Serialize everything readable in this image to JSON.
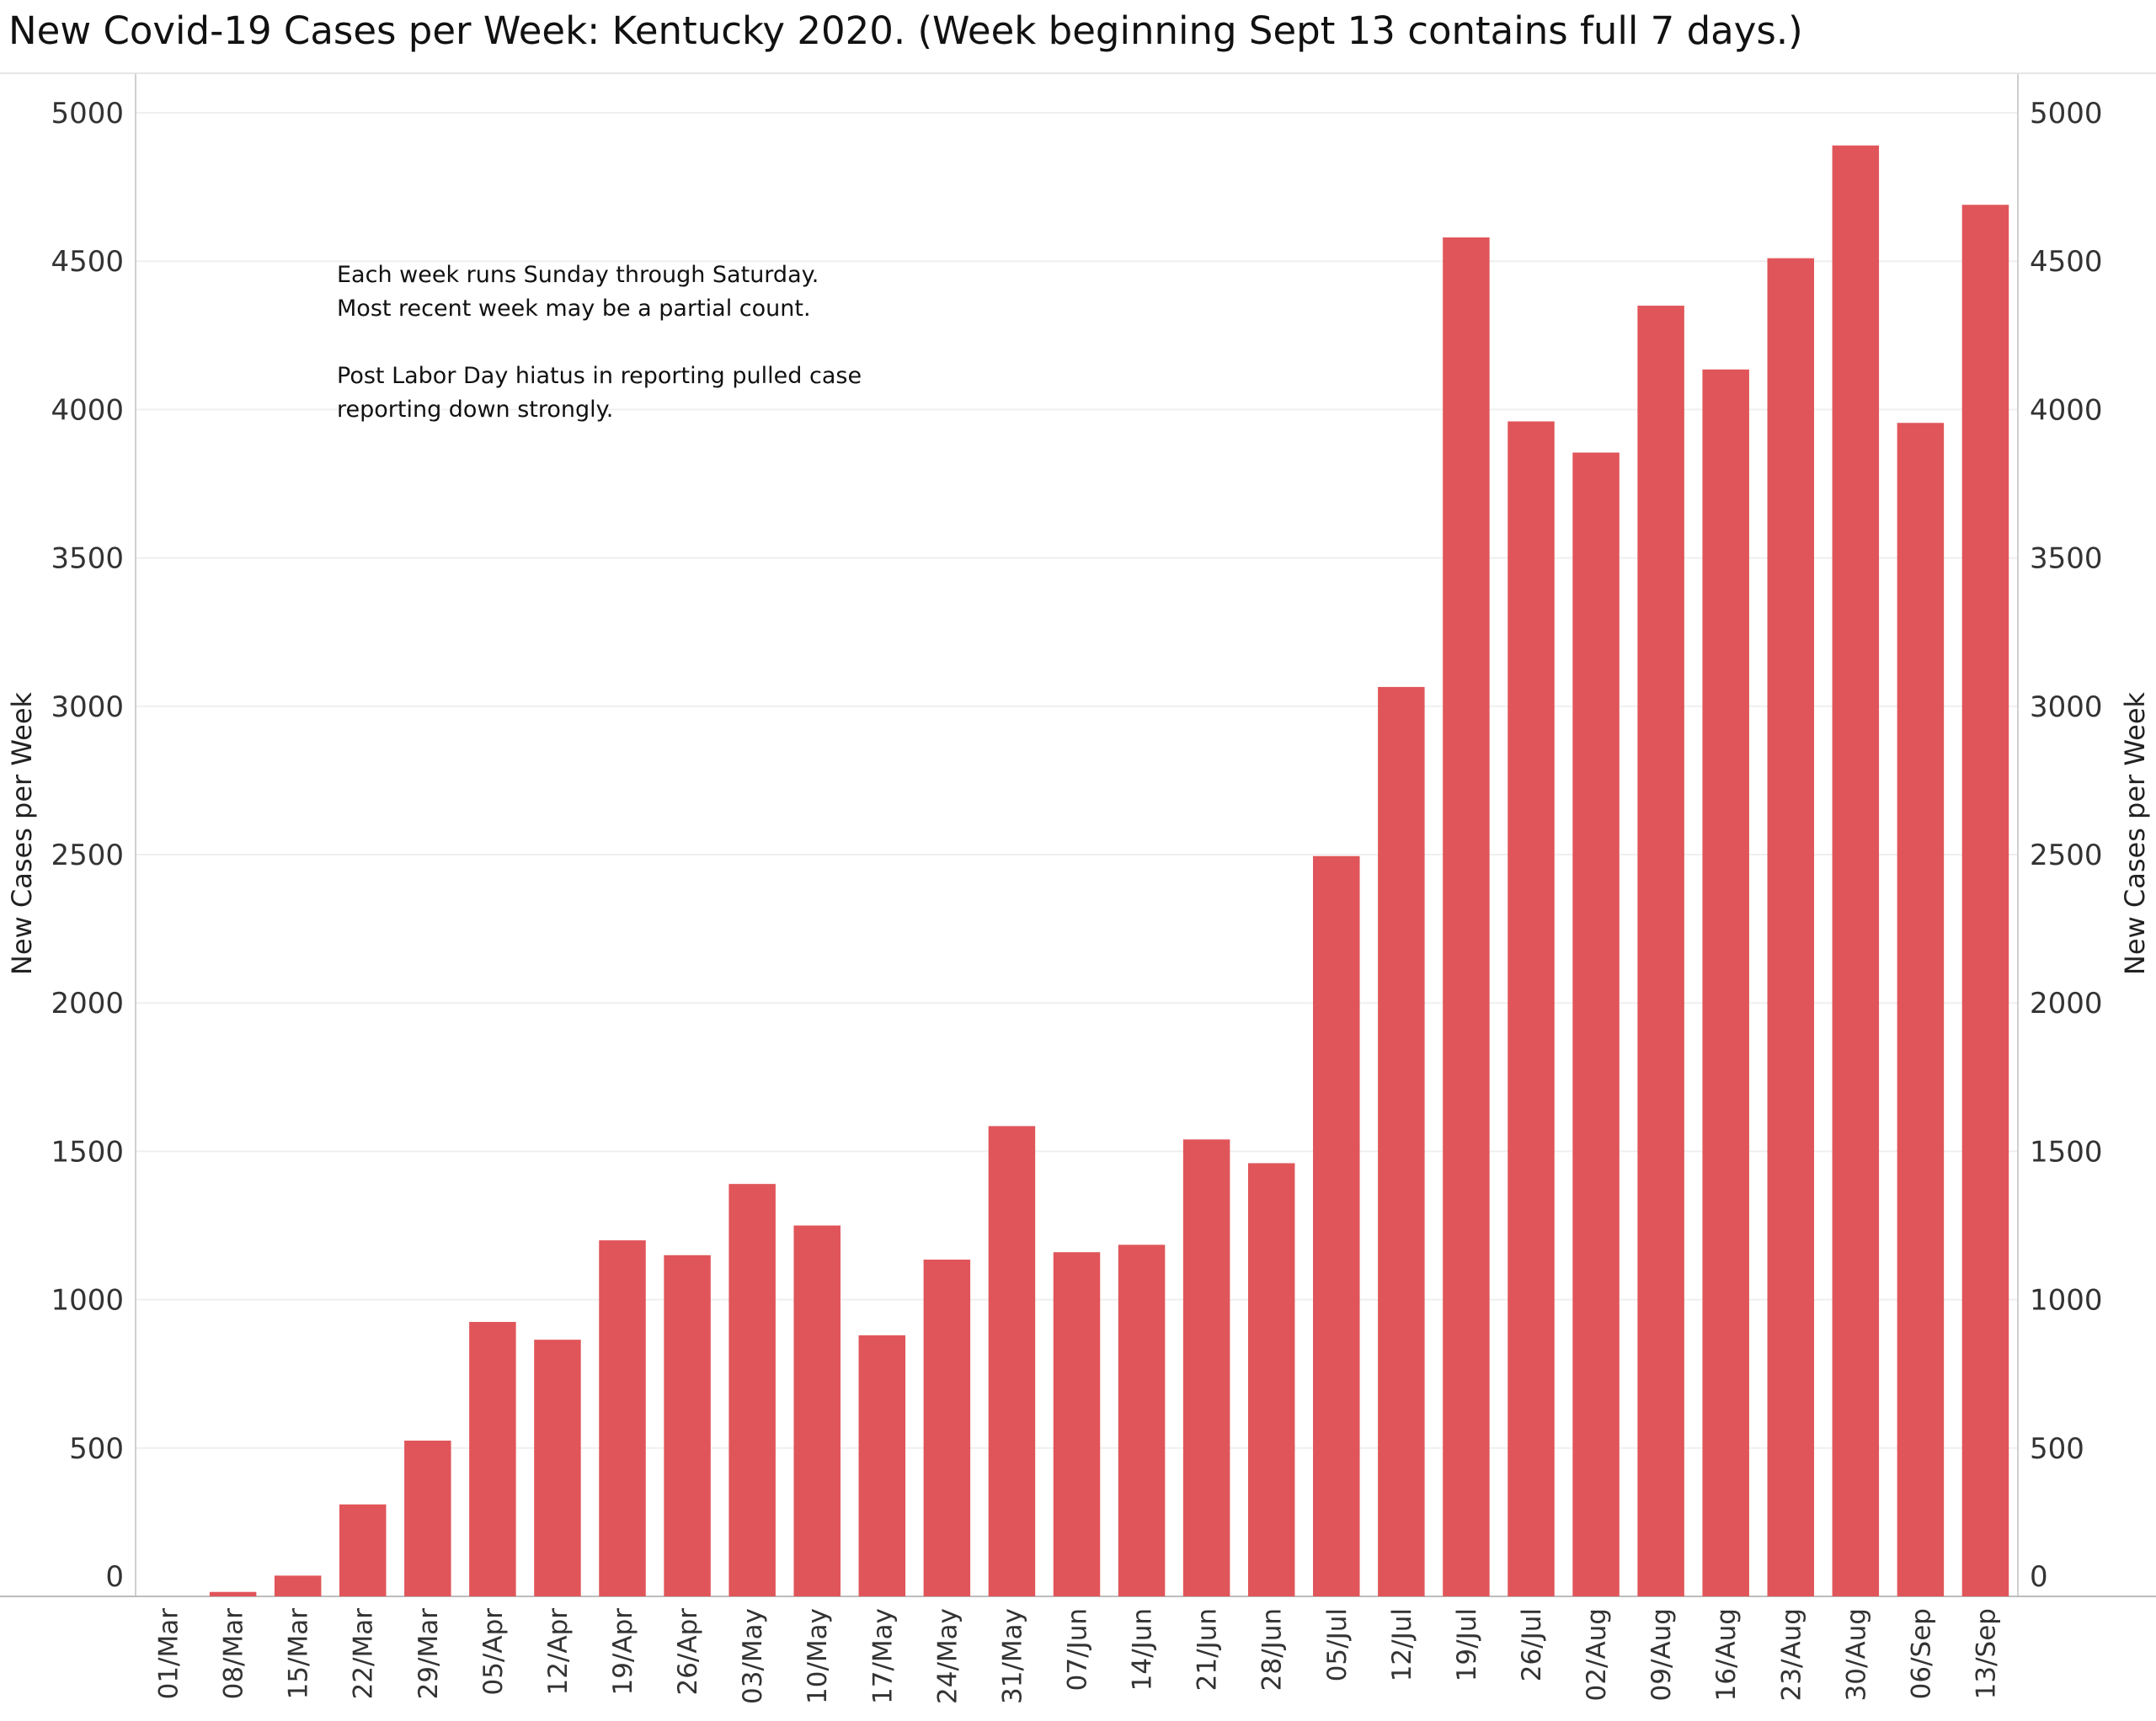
{
  "chart_data": {
    "type": "bar",
    "title": "New Covid-19 Cases per Week:  Kentucky 2020. (Week beginning  Sept 13 contains full 7 days.)",
    "ylabel": "New Cases per Week",
    "ylabel_right": "New Cases per Week",
    "ylim": [
      0,
      5000
    ],
    "yticks": [
      "5000",
      "4500",
      "4000",
      "3500",
      "3000",
      "2500",
      "2000",
      "1500",
      "1000",
      "500",
      "0"
    ],
    "categories": [
      "01/Mar",
      "08/Mar",
      "15/Mar",
      "22/Mar",
      "29/Mar",
      "05/Apr",
      "12/Apr",
      "19/Apr",
      "26/Apr",
      "03/May",
      "10/May",
      "17/May",
      "24/May",
      "31/May",
      "07/Jun",
      "14/Jun",
      "21/Jun",
      "28/Jun",
      "05/Jul",
      "12/Jul",
      "19/Jul",
      "26/Jul",
      "02/Aug",
      "09/Aug",
      "16/Aug",
      "23/Aug",
      "30/Aug",
      "06/Sep",
      "13/Sep"
    ],
    "values": [
      0,
      15,
      70,
      310,
      525,
      925,
      865,
      1200,
      1150,
      1390,
      1250,
      880,
      1135,
      1585,
      1160,
      1185,
      1540,
      1460,
      2495,
      3065,
      4580,
      3960,
      3855,
      4350,
      4135,
      4510,
      4890,
      3955,
      4690
    ],
    "bar_color": "#e05559",
    "grid": true,
    "annotation": [
      "Each week runs Sunday through Saturday.",
      "Most recent week may be a partial count.",
      "",
      "Post Labor Day hiatus in reporting pulled case",
      "reporting down strongly."
    ]
  }
}
